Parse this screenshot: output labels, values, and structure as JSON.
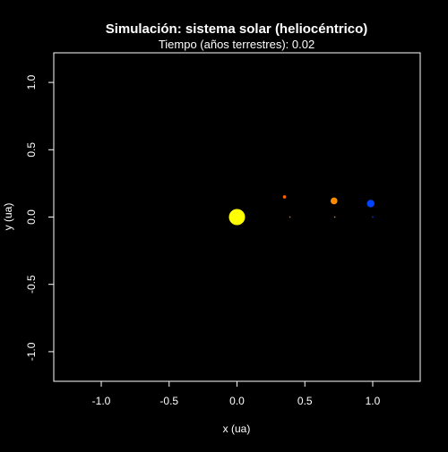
{
  "chart_data": {
    "type": "scatter",
    "title": "Simulación: sistema solar (heliocéntrico)",
    "subtitle": "Tiempo (años terrestres): 0.02",
    "xlabel": "x (ua)",
    "ylabel": "y (ua)",
    "xlim": [
      -1.35,
      1.35
    ],
    "ylim": [
      -1.22,
      1.22
    ],
    "xticks": [
      {
        "value": -1.0,
        "label": "-1.0"
      },
      {
        "value": -0.5,
        "label": "-0.5"
      },
      {
        "value": 0.0,
        "label": "0.0"
      },
      {
        "value": 0.5,
        "label": "0.5"
      },
      {
        "value": 1.0,
        "label": "1.0"
      }
    ],
    "yticks": [
      {
        "value": -1.0,
        "label": "-1.0"
      },
      {
        "value": -0.5,
        "label": "-0.5"
      },
      {
        "value": 0.0,
        "label": "0.0"
      },
      {
        "value": 0.5,
        "label": "0.5"
      },
      {
        "value": 1.0,
        "label": "1.0"
      }
    ],
    "grid": false,
    "background": "#000000",
    "foreground": "#ffffff",
    "points": [
      {
        "body": "sun",
        "x": 0.0,
        "y": 0.0,
        "color": "#ffff00",
        "role": "body"
      },
      {
        "body": "mercury",
        "x": 0.35,
        "y": 0.15,
        "color": "#ff6600",
        "role": "body"
      },
      {
        "body": "venus",
        "x": 0.715,
        "y": 0.12,
        "color": "#ff8c00",
        "role": "body"
      },
      {
        "body": "earth",
        "x": 0.985,
        "y": 0.1,
        "color": "#0044ff",
        "role": "body"
      },
      {
        "body": "mercury",
        "x": 0.39,
        "y": 0.0,
        "color": "#ff6600",
        "role": "start"
      },
      {
        "body": "venus",
        "x": 0.72,
        "y": 0.0,
        "color": "#ff8c00",
        "role": "start"
      },
      {
        "body": "earth",
        "x": 1.0,
        "y": 0.0,
        "color": "#0044ff",
        "role": "start"
      }
    ]
  }
}
